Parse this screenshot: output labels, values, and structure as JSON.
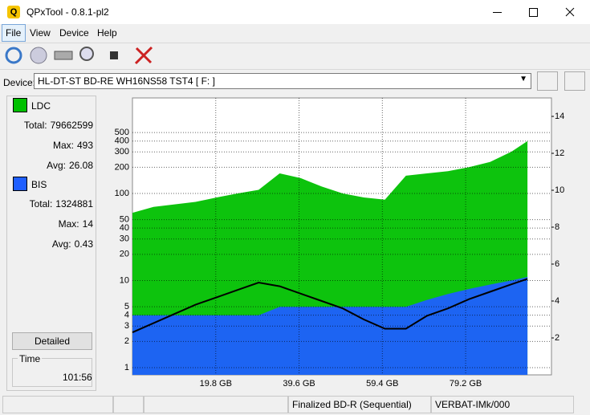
{
  "window": {
    "title": "QPxTool - 0.8.1-pl2"
  },
  "menu": [
    "File",
    "View",
    "Device",
    "Help"
  ],
  "device": {
    "label": "Device:",
    "value": "HL-DT-ST BD-RE  WH16NS58  TST4 [ F: ]"
  },
  "stats": {
    "ldc": {
      "total_label": "Total:",
      "total": 79662599,
      "max_label": "Max:",
      "max": 493,
      "avg_label": "Avg:",
      "avg": 26.08
    },
    "bis": {
      "total_label": "Total:",
      "total": 1324881,
      "max_label": "Max:",
      "max": 14,
      "avg_label": "Avg:",
      "avg": 0.43
    }
  },
  "detailed_button": "Detailed",
  "time": {
    "label": "Time",
    "value": "101:56"
  },
  "status_bar": [
    "Finalized BD-R (Sequential)",
    "VERBAT-IMk/000"
  ],
  "chart_data": {
    "type": "area",
    "x": [
      0,
      5,
      10,
      15,
      20,
      25,
      30,
      35,
      40,
      45,
      50,
      55,
      60,
      65,
      70,
      75,
      80,
      85,
      90,
      93.9
    ],
    "series": [
      {
        "name": "LDC",
        "color": "#00c000",
        "values": [
          60,
          70,
          75,
          80,
          90,
          100,
          110,
          170,
          150,
          120,
          100,
          90,
          85,
          160,
          170,
          180,
          200,
          230,
          300,
          400
        ]
      },
      {
        "name": "BIS",
        "color": "#1f5fff",
        "values": [
          4,
          4,
          4,
          4,
          4,
          4,
          4,
          5,
          5,
          5,
          5,
          5,
          5,
          5,
          6,
          7,
          8,
          9,
          10,
          11
        ]
      },
      {
        "color": "#000000",
        "axis": "y2",
        "values": [
          2.3,
          2.8,
          3.3,
          3.8,
          4.2,
          4.6,
          5.0,
          4.8,
          4.4,
          4.0,
          3.6,
          3.0,
          2.5,
          2.5,
          3.2,
          3.6,
          4.1,
          4.5,
          4.9,
          5.2
        ]
      }
    ],
    "xlim": [
      0,
      99.6
    ],
    "xticks": [
      {
        "value": 19.8,
        "label": "19.8 GB"
      },
      {
        "value": 39.6,
        "label": "39.6 GB"
      },
      {
        "value": 59.4,
        "label": "59.4 GB"
      },
      {
        "value": 79.2,
        "label": "79.2 GB"
      }
    ],
    "ylim": [
      0.826,
      1250
    ],
    "yticks": [
      1,
      2,
      3,
      4,
      5,
      10,
      20,
      30,
      40,
      50,
      100,
      200,
      300,
      400,
      500
    ],
    "ylog": true,
    "y2lim": [
      0,
      15
    ],
    "y2ticks": [
      2,
      4,
      6,
      8,
      10,
      12,
      14
    ],
    "grid": true
  }
}
